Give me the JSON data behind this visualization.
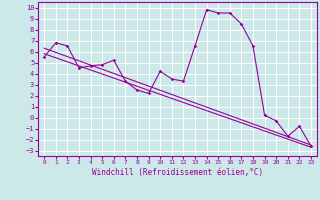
{
  "xlabel": "Windchill (Refroidissement éolien,°C)",
  "background_color": "#cce8e8",
  "grid_color": "#ffffff",
  "line_color": "#990099",
  "xlim": [
    -0.5,
    23.5
  ],
  "ylim": [
    -3.5,
    10.5
  ],
  "x_ticks": [
    0,
    1,
    2,
    3,
    4,
    5,
    6,
    7,
    8,
    9,
    10,
    11,
    12,
    13,
    14,
    15,
    16,
    17,
    18,
    19,
    20,
    21,
    22,
    23
  ],
  "y_ticks": [
    -3,
    -2,
    -1,
    0,
    1,
    2,
    3,
    4,
    5,
    6,
    7,
    8,
    9,
    10
  ],
  "series1_x": [
    0,
    1,
    2,
    3,
    4,
    5,
    6,
    7,
    8,
    9,
    10,
    11,
    12,
    13,
    14,
    15,
    16,
    17,
    18,
    19,
    20,
    21,
    22,
    23
  ],
  "series1_y": [
    5.5,
    6.8,
    6.5,
    4.5,
    4.7,
    4.8,
    5.2,
    3.3,
    2.5,
    2.2,
    4.2,
    3.5,
    3.3,
    6.5,
    9.8,
    9.5,
    9.5,
    8.5,
    6.5,
    0.2,
    -0.3,
    -1.7,
    -0.8,
    -2.6
  ],
  "series2_x": [
    0,
    23
  ],
  "series2_y": [
    6.3,
    -2.5
  ],
  "series3_x": [
    0,
    23
  ],
  "series3_y": [
    5.8,
    -2.7
  ]
}
